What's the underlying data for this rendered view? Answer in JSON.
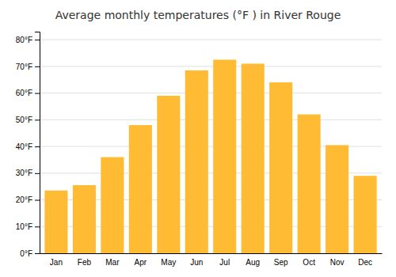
{
  "chart_data": {
    "type": "bar",
    "title": "Average monthly temperatures (°F ) in River Rouge",
    "categories": [
      "Jan",
      "Feb",
      "Mar",
      "Apr",
      "May",
      "Jun",
      "Jul",
      "Aug",
      "Sep",
      "Oct",
      "Nov",
      "Dec"
    ],
    "values": [
      23.5,
      25.5,
      36,
      48,
      59,
      68.5,
      72.5,
      71,
      64,
      52,
      40.5,
      29
    ],
    "color": "#FFBB33",
    "ylim": [
      0,
      83
    ],
    "yticks": [
      {
        "value": 0,
        "label": "0°F"
      },
      {
        "value": 10,
        "label": "10°F"
      },
      {
        "value": 20,
        "label": "20°F"
      },
      {
        "value": 30,
        "label": "30°F"
      },
      {
        "value": 40,
        "label": "40°F"
      },
      {
        "value": 50,
        "label": "50°F"
      },
      {
        "value": 60,
        "label": "60°F"
      },
      {
        "value": 70,
        "label": "70°F"
      },
      {
        "value": 80,
        "label": "80°F"
      }
    ],
    "grid": true
  }
}
